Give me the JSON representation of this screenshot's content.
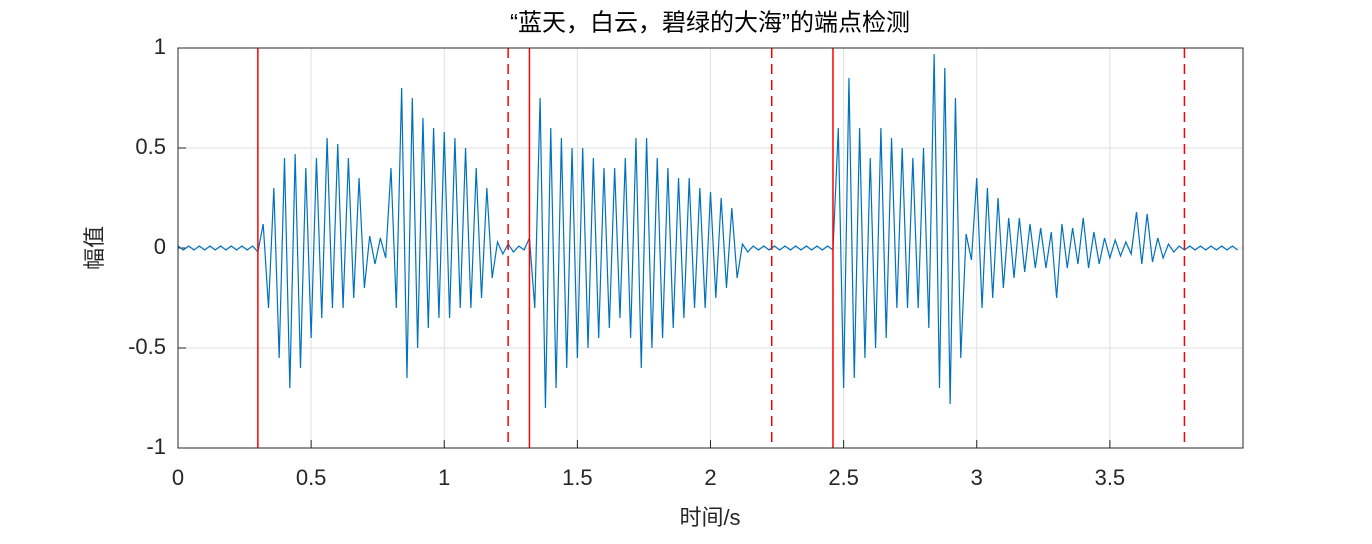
{
  "chart_data": {
    "type": "line",
    "title": "“蓝天，白云，碧绿的大海”的端点检测",
    "x_label": "时间/s",
    "y_label": "幅值",
    "xlim": [
      0,
      4
    ],
    "ylim": [
      -1,
      1
    ],
    "xticks": [
      0,
      0.5,
      1,
      1.5,
      2,
      2.5,
      3,
      3.5
    ],
    "yticks": [
      -1,
      -0.5,
      0,
      0.5,
      1
    ],
    "grid": true,
    "start_points": [
      0.3,
      1.32,
      2.46
    ],
    "end_points": [
      1.24,
      2.23,
      3.78
    ],
    "marker_color": "#ff0000",
    "x": [
      0,
      0.02,
      0.04,
      0.06,
      0.08,
      0.1,
      0.12,
      0.14,
      0.16,
      0.18,
      0.2,
      0.22,
      0.24,
      0.26,
      0.28,
      0.3,
      0.32,
      0.34,
      0.36,
      0.38,
      0.4,
      0.42,
      0.44,
      0.46,
      0.48,
      0.5,
      0.52,
      0.54,
      0.56,
      0.58,
      0.6,
      0.62,
      0.64,
      0.66,
      0.68,
      0.7,
      0.72,
      0.74,
      0.76,
      0.78,
      0.8,
      0.82,
      0.84,
      0.86,
      0.88,
      0.9,
      0.92,
      0.94,
      0.96,
      0.98,
      1,
      1.02,
      1.04,
      1.06,
      1.08,
      1.1,
      1.12,
      1.14,
      1.16,
      1.18,
      1.2,
      1.22,
      1.24,
      1.26,
      1.28,
      1.3,
      1.32,
      1.34,
      1.36,
      1.38,
      1.4,
      1.42,
      1.44,
      1.46,
      1.48,
      1.5,
      1.52,
      1.54,
      1.56,
      1.58,
      1.6,
      1.62,
      1.64,
      1.66,
      1.68,
      1.7,
      1.72,
      1.74,
      1.76,
      1.78,
      1.8,
      1.82,
      1.84,
      1.86,
      1.88,
      1.9,
      1.92,
      1.94,
      1.96,
      1.98,
      2,
      2.02,
      2.04,
      2.06,
      2.08,
      2.1,
      2.12,
      2.14,
      2.16,
      2.18,
      2.2,
      2.22,
      2.24,
      2.26,
      2.28,
      2.3,
      2.32,
      2.34,
      2.36,
      2.38,
      2.4,
      2.42,
      2.44,
      2.46,
      2.48,
      2.5,
      2.52,
      2.54,
      2.56,
      2.58,
      2.6,
      2.62,
      2.64,
      2.66,
      2.68,
      2.7,
      2.72,
      2.74,
      2.76,
      2.78,
      2.8,
      2.82,
      2.84,
      2.86,
      2.88,
      2.9,
      2.92,
      2.94,
      2.96,
      2.98,
      3,
      3.02,
      3.04,
      3.06,
      3.08,
      3.1,
      3.12,
      3.14,
      3.16,
      3.18,
      3.2,
      3.22,
      3.24,
      3.26,
      3.28,
      3.3,
      3.32,
      3.34,
      3.36,
      3.38,
      3.4,
      3.42,
      3.44,
      3.46,
      3.48,
      3.5,
      3.52,
      3.54,
      3.56,
      3.58,
      3.6,
      3.62,
      3.64,
      3.66,
      3.68,
      3.7,
      3.72,
      3.74,
      3.76,
      3.78,
      3.8,
      3.82,
      3.84,
      3.86,
      3.88,
      3.9,
      3.92,
      3.94,
      3.96,
      3.98
    ],
    "series": [
      {
        "color": "#0072bd",
        "values": [
          0.01,
          -0.01,
          0.01,
          -0.01,
          0.01,
          -0.01,
          0.01,
          -0.01,
          0.01,
          -0.01,
          0.01,
          -0.01,
          0.01,
          -0.01,
          0.01,
          -0.02,
          0.12,
          -0.3,
          0.3,
          -0.55,
          0.45,
          -0.7,
          0.47,
          -0.6,
          0.4,
          -0.45,
          0.45,
          -0.35,
          0.55,
          -0.3,
          0.52,
          -0.3,
          0.45,
          -0.25,
          0.35,
          -0.2,
          0.06,
          -0.08,
          0.05,
          -0.05,
          0.4,
          -0.3,
          0.8,
          -0.65,
          0.75,
          -0.5,
          0.65,
          -0.4,
          0.6,
          -0.35,
          0.58,
          -0.35,
          0.55,
          -0.3,
          0.5,
          -0.3,
          0.4,
          -0.25,
          0.3,
          -0.15,
          0.03,
          -0.03,
          0.02,
          -0.02,
          0.01,
          -0.01,
          0.05,
          -0.3,
          0.75,
          -0.8,
          0.6,
          -0.7,
          0.55,
          -0.6,
          0.5,
          -0.55,
          0.5,
          -0.5,
          0.45,
          -0.45,
          0.4,
          -0.4,
          0.4,
          -0.35,
          0.45,
          -0.45,
          0.55,
          -0.6,
          0.55,
          -0.5,
          0.45,
          -0.45,
          0.4,
          -0.4,
          0.35,
          -0.35,
          0.35,
          -0.3,
          0.3,
          -0.3,
          0.28,
          -0.25,
          0.25,
          -0.2,
          0.2,
          -0.15,
          0.02,
          -0.02,
          0.01,
          -0.01,
          0.01,
          -0.01,
          0.01,
          -0.01,
          0.01,
          -0.01,
          0.01,
          -0.01,
          0.01,
          -0.01,
          0.01,
          -0.01,
          0.01,
          -0.01,
          0.6,
          -0.7,
          0.85,
          -0.65,
          0.6,
          -0.55,
          0.45,
          -0.5,
          0.6,
          -0.45,
          0.55,
          -0.3,
          0.5,
          -0.3,
          0.45,
          -0.3,
          0.5,
          -0.4,
          0.97,
          -0.7,
          0.9,
          -0.78,
          0.75,
          -0.55,
          0.07,
          -0.06,
          0.35,
          -0.3,
          0.3,
          -0.25,
          0.25,
          -0.2,
          0.15,
          -0.15,
          0.15,
          -0.12,
          0.12,
          -0.1,
          0.1,
          -0.1,
          0.08,
          -0.25,
          0.12,
          -0.1,
          0.1,
          -0.08,
          0.15,
          -0.1,
          0.08,
          -0.08,
          0.05,
          -0.05,
          0.04,
          -0.04,
          0.03,
          -0.03,
          0.18,
          -0.08,
          0.17,
          -0.07,
          0.05,
          -0.05,
          0.02,
          -0.02,
          0.01,
          -0.01,
          0.01,
          -0.01,
          0.01,
          -0.01,
          0.01,
          -0.01,
          0.01,
          -0.01,
          0.01,
          -0.01
        ]
      }
    ]
  }
}
